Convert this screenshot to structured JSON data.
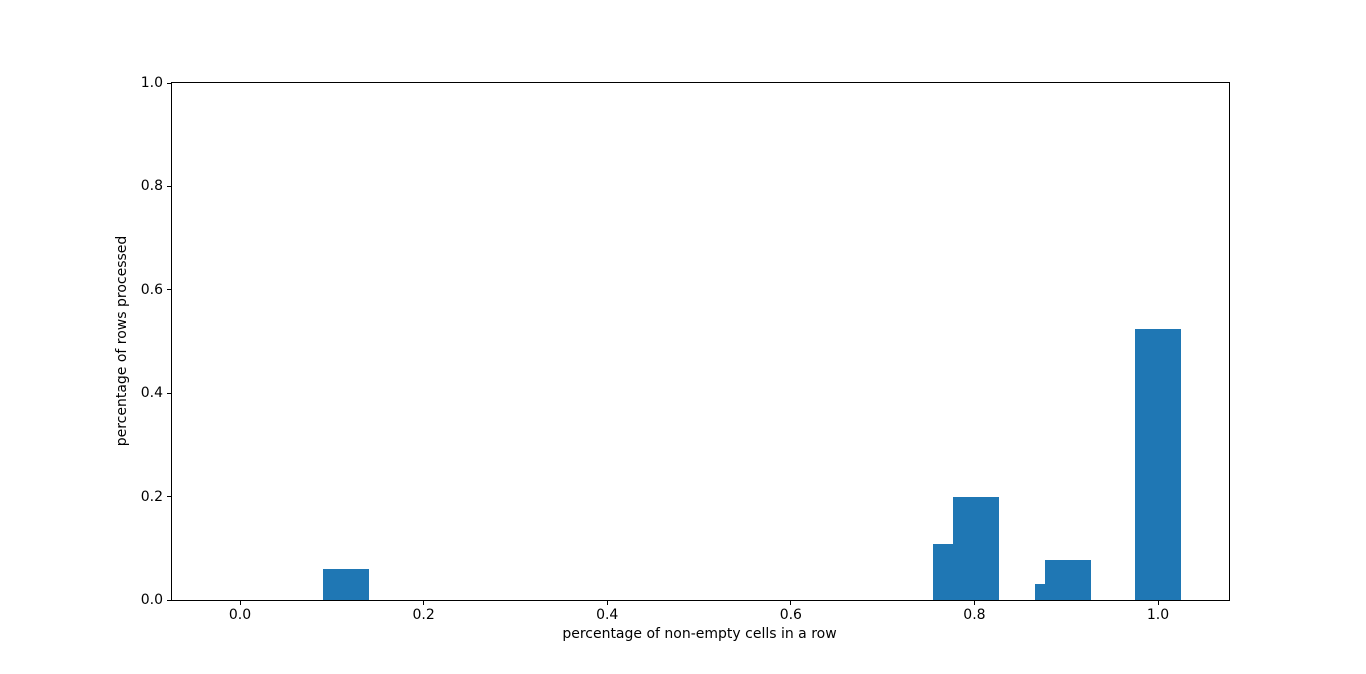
{
  "chart_data": {
    "type": "bar",
    "title": "",
    "xlabel": "percentage of non-empty cells in a row",
    "ylabel": "percentage of rows processed",
    "x_tick_labels": [
      "0.0",
      "0.2",
      "0.4",
      "0.6",
      "0.8",
      "1.0"
    ],
    "y_tick_labels": [
      "0.0",
      "0.2",
      "0.4",
      "0.6",
      "0.8",
      "1.0"
    ],
    "xlim": [
      -0.0741,
      1.0773
    ],
    "ylim": [
      0,
      1.0
    ],
    "grid": false,
    "legend": null,
    "bar_color": "#1f77b4",
    "bar_width": 0.05,
    "bars": [
      {
        "x": 0.115,
        "height": 0.06
      },
      {
        "x": 0.78,
        "height": 0.108
      },
      {
        "x": 0.802,
        "height": 0.199
      },
      {
        "x": 0.891,
        "height": 0.031
      },
      {
        "x": 0.902,
        "height": 0.077
      },
      {
        "x": 1.0,
        "height": 0.524
      }
    ]
  }
}
